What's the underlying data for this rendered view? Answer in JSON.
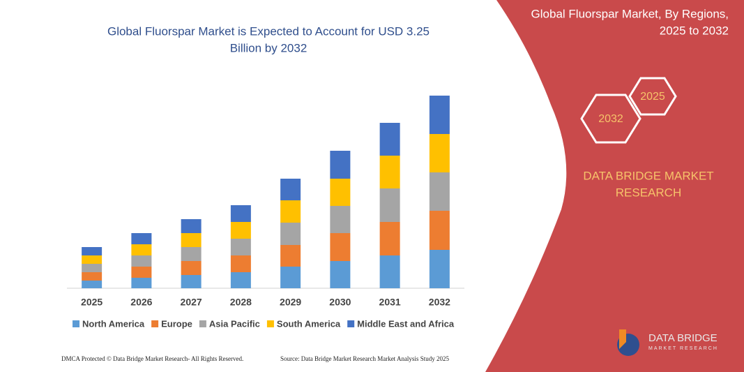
{
  "chart_data": {
    "type": "stacked_bar",
    "title": [
      "Global Fluorspar Market is Expected to Account for USD 3.25",
      "Billion by 2032"
    ],
    "categories": [
      "2025",
      "2026",
      "2027",
      "2028",
      "2029",
      "2030",
      "2031",
      "2032"
    ],
    "series": [
      {
        "name": "North America",
        "color": "#5b9bd5",
        "values": [
          11,
          15,
          19,
          23,
          31,
          39,
          47,
          55
        ]
      },
      {
        "name": "Europe",
        "color": "#ed7d31",
        "values": [
          12,
          16,
          20,
          24,
          31,
          40,
          48,
          56
        ]
      },
      {
        "name": "Asia Pacific",
        "color": "#a5a5a5",
        "values": [
          12,
          16,
          20,
          24,
          32,
          39,
          48,
          55
        ]
      },
      {
        "name": "South America",
        "color": "#ffc000",
        "values": [
          12,
          16,
          20,
          24,
          32,
          39,
          47,
          55
        ]
      },
      {
        "name": "Middle East and Africa",
        "color": "#4472c4",
        "values": [
          12,
          16,
          20,
          24,
          31,
          40,
          47,
          55
        ]
      }
    ],
    "ylim": [
      0,
      300
    ]
  },
  "panel": {
    "title": [
      "Global Fluorspar Market, By Regions,",
      "2025 to 2032"
    ],
    "hex_labels": [
      "2032",
      "2025"
    ],
    "brand": [
      "DATA BRIDGE MARKET",
      "RESEARCH"
    ],
    "logo": "DATA BRIDGE",
    "logo_sub": "MARKET RESEARCH"
  },
  "footer": {
    "left": "DMCA Protected © Data Bridge Market Research- All Rights Reserved.",
    "right": "Source: Data Bridge Market Research Market Analysis Study 2025"
  }
}
